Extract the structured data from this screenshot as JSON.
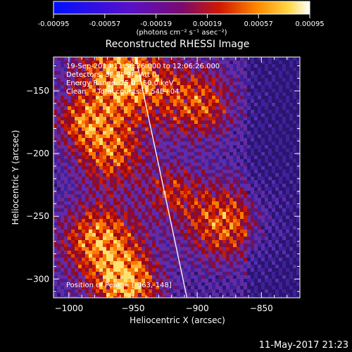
{
  "colorbar": {
    "ticks": [
      "-0.00095",
      "-0.00057",
      "-0.00019",
      "0.00019",
      "0.00057",
      "0.00095"
    ],
    "unit": "(photons cm⁻² s⁻¹ asec⁻²)"
  },
  "chart_data": {
    "type": "heatmap",
    "title": "Reconstructed RHESSI Image",
    "xlabel": "Heliocentric X (arcsec)",
    "ylabel": "Heliocentric Y (arcsec)",
    "xlim": [
      -1012,
      -820
    ],
    "ylim": [
      -315,
      -123
    ],
    "x_ticks": [
      -1000,
      -950,
      -900,
      -850
    ],
    "y_ticks": [
      -300,
      -250,
      -200,
      -150
    ],
    "x_tick_labels": [
      "−1000",
      "−950",
      "−900",
      "−850"
    ],
    "y_tick_labels": [
      "−300",
      "−250",
      "−200",
      "−150"
    ],
    "colorbar_range": [
      -0.00095,
      0.00095
    ],
    "annotations": [
      "19-Sep-2014 11:56:26.000 to 12:06:26.000",
      "Detectors: 3F 8F 9F, Att 0",
      "Energy Range: 25.0 - 50.0 keV",
      "Clean     Total counts: 1.54E+04"
    ],
    "peak_label": "Position of Peak = [-963,-148]",
    "peak_position": [
      -963,
      -148
    ],
    "limb_line": [
      [
        -948,
        -123
      ],
      [
        -908,
        -315
      ]
    ]
  },
  "footer": {
    "timestamp": "11-May-2017 21:23"
  }
}
